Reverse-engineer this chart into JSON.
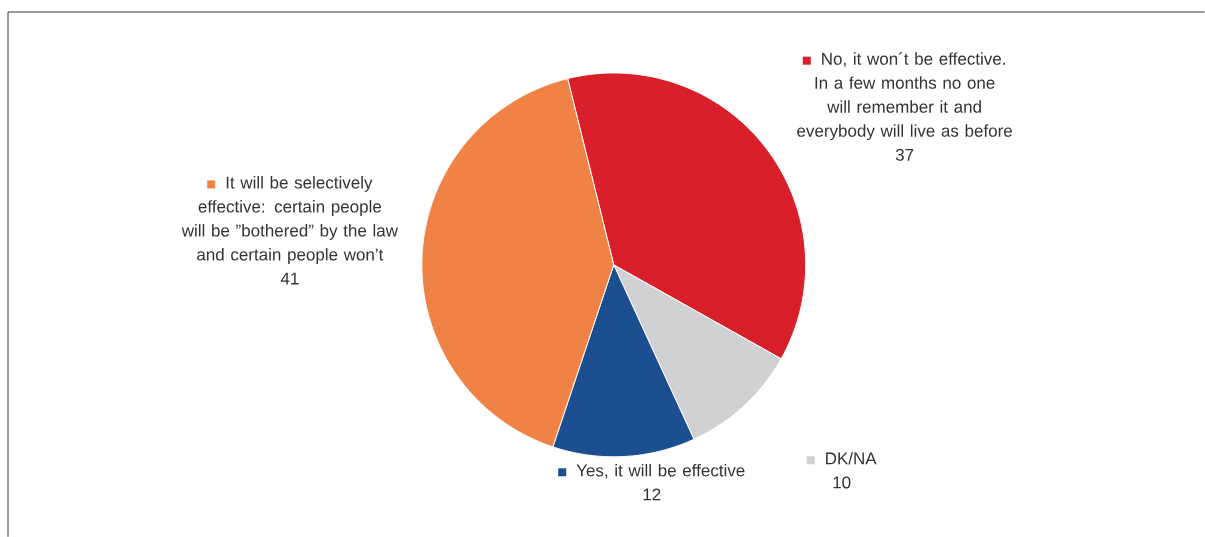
{
  "chart_data": {
    "type": "pie",
    "categories": [
      "No, it won´t be effective. In a few months no one will remember it and everybody will live as before",
      "DK/NA",
      "Yes, it will be effective",
      "It will be selectively effective: certain people will be ”bothered” by the law and certain people won’t"
    ],
    "values": [
      37,
      10,
      12,
      41
    ],
    "colors": [
      "#d91f2a",
      "#d0d1d3",
      "#1c4f8f",
      "#f08246"
    ],
    "data_labels": true,
    "legend": "right"
  }
}
